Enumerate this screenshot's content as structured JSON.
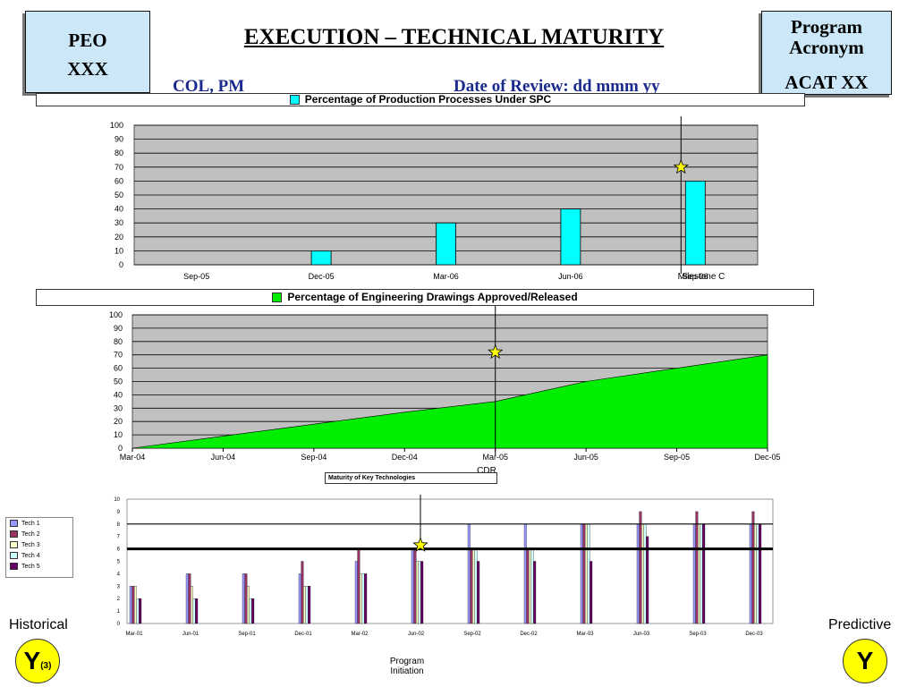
{
  "header": {
    "peo_line1": "PEO",
    "peo_line2": "XXX",
    "title": "EXECUTION – TECHNICAL MATURITY",
    "program_line1": "Program",
    "program_line2": "Acronym",
    "program_line3": "ACAT XX",
    "col_pm": "COL, PM",
    "date_of_review": "Date of Review: dd mmm yy"
  },
  "labels": {
    "milestone_c": "Milestone C",
    "cdr": "CDR",
    "program_initiation": "Program Initiation",
    "historical": "Historical",
    "predictive": "Predictive",
    "y_hist": "Y",
    "y_hist_note": "(3)",
    "y_pred": "Y"
  },
  "colors": {
    "chart1_bar": "#00ffff",
    "chart2_area": "#00ee00",
    "plot_bg": "#c0c0c0",
    "marker_star": "#ffff00",
    "indicator_circle": "#ffff00",
    "title_blue": "#1a2a8c",
    "header_box": "#cce8f8"
  },
  "chart_data": [
    {
      "type": "bar",
      "title": "Percentage of Production Processes Under SPC",
      "categories": [
        "Sep-05",
        "Dec-05",
        "Mar-06",
        "Jun-06",
        "Sep-06"
      ],
      "series": [
        {
          "name": "Percentage of Production Processes Under SPC",
          "values": [
            0,
            10,
            30,
            40,
            60
          ]
        }
      ],
      "ylim": [
        0,
        100
      ],
      "yticks": [
        0,
        10,
        20,
        30,
        40,
        50,
        60,
        70,
        80,
        90,
        100
      ],
      "grid": true,
      "marker": {
        "label": "Milestone C",
        "x": "Sep-06",
        "y": 70
      }
    },
    {
      "type": "area",
      "title": "Percentage of Engineering Drawings Approved/Released",
      "x": [
        "Mar-04",
        "Jun-04",
        "Sep-04",
        "Dec-04",
        "Mar-05",
        "Jun-05",
        "Sep-05",
        "Dec-05"
      ],
      "series": [
        {
          "name": "Percentage of Engineering Drawings Approved/Released",
          "values": [
            0,
            9,
            18,
            27,
            35,
            50,
            60,
            70
          ]
        }
      ],
      "ylim": [
        0,
        100
      ],
      "yticks": [
        0,
        10,
        20,
        30,
        40,
        50,
        60,
        70,
        80,
        90,
        100
      ],
      "grid": true,
      "marker": {
        "label": "CDR",
        "x": "Mar-05",
        "y": 72
      }
    },
    {
      "type": "bar",
      "title": "Maturity of Key Technologies",
      "categories": [
        "Mar-01",
        "Jun-01",
        "Sep-01",
        "Dec-01",
        "Mar-02",
        "Jun-02",
        "Sep-02",
        "Dec-02",
        "Mar-03",
        "Jun-03",
        "Sep-03",
        "Dec-03"
      ],
      "series": [
        {
          "name": "Tech 1",
          "color": "#9999ff",
          "values": [
            3,
            4,
            4,
            4,
            5,
            6,
            8,
            8,
            8,
            8,
            8,
            8
          ]
        },
        {
          "name": "Tech 2",
          "color": "#993366",
          "values": [
            3,
            4,
            4,
            5,
            6,
            6,
            6,
            6,
            8,
            9,
            9,
            9
          ]
        },
        {
          "name": "Tech 3",
          "color": "#ffffcc",
          "values": [
            3,
            3,
            3,
            3,
            4,
            5,
            6,
            6,
            8,
            8,
            8,
            8
          ]
        },
        {
          "name": "Tech 4",
          "color": "#ccffff",
          "values": [
            2,
            2,
            2,
            3,
            4,
            5,
            6,
            6,
            8,
            8,
            8,
            8
          ]
        },
        {
          "name": "Tech 5",
          "color": "#660066",
          "values": [
            2,
            2,
            2,
            3,
            4,
            5,
            5,
            5,
            5,
            7,
            8,
            8
          ]
        }
      ],
      "ylim": [
        0,
        10
      ],
      "yticks": [
        0,
        1,
        2,
        3,
        4,
        5,
        6,
        7,
        8,
        9,
        10
      ],
      "reference_lines": [
        6,
        8
      ],
      "legend": "left",
      "marker": {
        "label": "Program Initiation",
        "x": "Jun-02",
        "y": 6.3
      }
    }
  ]
}
